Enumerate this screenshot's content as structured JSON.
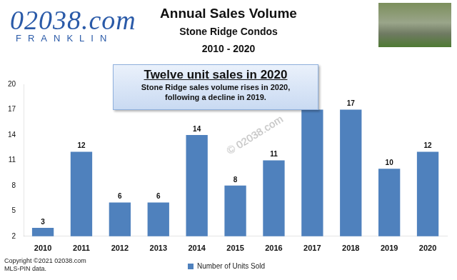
{
  "chart_data": {
    "type": "bar",
    "title": "Annual Sales Volume",
    "subtitle": [
      "Stone Ridge Condos",
      "2010 - 2020"
    ],
    "logo": {
      "name": "02038.com",
      "tagline": "FRANKLIN"
    },
    "annotation": {
      "heading": "Twelve unit sales in 2020",
      "lines": [
        "Stone Ridge sales volume rises in 2020,",
        "following a decline in 2019."
      ]
    },
    "watermark": "© 02038.com",
    "source": [
      "Copyright ©2021 02038.com",
      "MLS-PIN data."
    ],
    "categories": [
      "2010",
      "2011",
      "2012",
      "2013",
      "2014",
      "2015",
      "2016",
      "2017",
      "2018",
      "2019",
      "2020"
    ],
    "series": [
      {
        "name": "Number of Units Sold",
        "color": "#4f81bd",
        "values": [
          3,
          12,
          6,
          6,
          14,
          8,
          11,
          17,
          17,
          10,
          12
        ]
      }
    ],
    "ylim": [
      2,
      20
    ],
    "yticks": [
      2,
      5,
      8,
      11,
      14,
      17,
      20
    ],
    "grid": false,
    "data_labels": true,
    "legend": "bottom"
  }
}
